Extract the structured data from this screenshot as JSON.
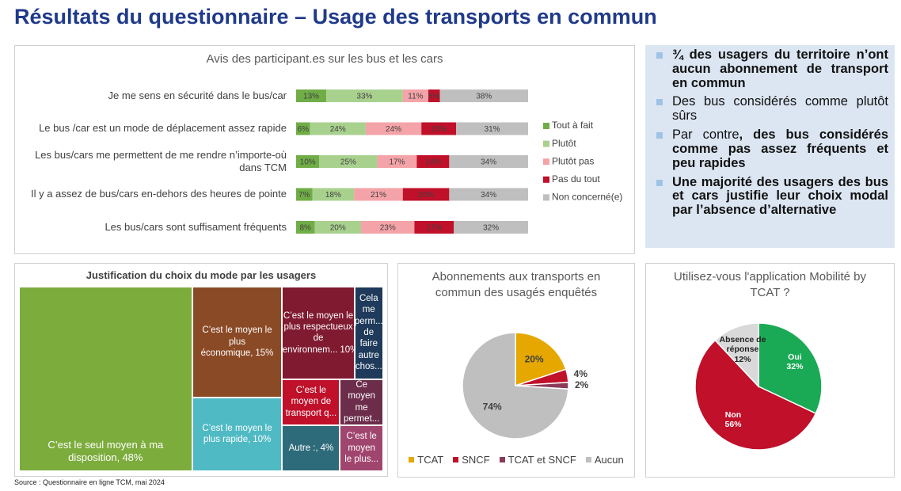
{
  "title": "Résultats du questionnaire – Usage des transports en commun",
  "bullets": [
    [
      {
        "text": "¾ des usagers du territoire n’ont aucun abonnement de transport en commun",
        "bold": true
      }
    ],
    [
      {
        "text": "Des bus considérés comme plutôt sûrs",
        "bold": false
      }
    ],
    [
      {
        "text": "Par contre",
        "bold": false
      },
      {
        "text": ", des bus considérés comme pas assez fréquents et peu rapides",
        "bold": true
      }
    ],
    [
      {
        "text": "Une majorité des usagers des bus et cars justifie leur choix modal par l’absence d’alternative",
        "bold": true
      }
    ]
  ],
  "source": "Source : Questionnaire en ligne TCM, mai 2024",
  "chart_data": [
    {
      "type": "bar",
      "orientation": "horizontal",
      "stacked": true,
      "title": "Avis des participant.es sur les bus et les cars",
      "categories": [
        "Je me sens en sécurité dans le bus/car",
        "Le bus /car est un mode de déplacement assez rapide",
        "Les bus/cars me permettent de me rendre n’importe-où dans TCM",
        "Il y a assez de bus/cars en-dehors des heures de pointe",
        "Les bus/cars sont suffisament fréquents"
      ],
      "series": [
        {
          "name": "Tout à fait",
          "color": "#70ad47",
          "values": [
            13,
            6,
            10,
            7,
            8
          ],
          "value_labels": [
            "13%",
            "6%",
            "10%",
            "7%",
            "8%"
          ]
        },
        {
          "name": "Plutôt",
          "color": "#a9d18e",
          "values": [
            33,
            24,
            25,
            18,
            20
          ],
          "value_labels": [
            "33%",
            "24%",
            "25%",
            "18%",
            "20%"
          ]
        },
        {
          "name": "Plutôt pas",
          "color": "#f4a3a8",
          "values": [
            11,
            24,
            17,
            21,
            23
          ],
          "value_labels": [
            "11%",
            "24%",
            "17%",
            "21%",
            "23%"
          ]
        },
        {
          "name": "Pas du tout",
          "color": "#c0102a",
          "values": [
            5,
            15,
            14,
            20,
            17
          ],
          "value_labels": [
            "5%",
            "15%",
            "14%",
            "20%",
            "17%"
          ]
        },
        {
          "name": "Non concerné(e)",
          "color": "#bfbfbf",
          "values": [
            38,
            31,
            34,
            34,
            32
          ],
          "value_labels": [
            "38%",
            "31%",
            "34%",
            "34%",
            "32%"
          ]
        }
      ],
      "legend": "right"
    },
    {
      "type": "treemap",
      "title": "Justification du choix du mode par les usagers",
      "categories": [
        "C’est le seul moyen à ma disposition,",
        "C’est le moyen le plus économique,",
        "C’est le moyen le plus rapide,",
        "C’est le moyen le plus respectueux de l’environnem...",
        "Cela me perm... de faire autre chos...",
        "C’est le moyen de transport q...",
        "Ce moyen me permet...",
        "Autre :,",
        "C’est le moyen le plus..."
      ],
      "values": [
        48,
        15,
        10,
        10,
        4,
        4,
        3,
        4,
        3
      ],
      "value_labels": [
        "48%",
        "15%",
        "10%",
        "10%",
        null,
        null,
        null,
        "4%",
        null
      ],
      "colors": [
        "#7cac3c",
        "#8b4a26",
        "#4fbac4",
        "#7f1a30",
        "#1f3a5a",
        "#c0102a",
        "#6b2d4a",
        "#2e6b7a",
        "#a0456e"
      ]
    },
    {
      "type": "pie",
      "title": "Abonnements aux transports en commun des usagés enquêtés",
      "categories": [
        "TCAT",
        "SNCF",
        "TCAT et SNCF",
        "Aucun"
      ],
      "values": [
        20,
        4,
        2,
        74
      ],
      "value_labels": [
        "20%",
        "4%",
        "2%",
        "74%"
      ],
      "colors": [
        "#e6a800",
        "#c0102a",
        "#8b3a5a",
        "#bfbfbf"
      ],
      "legend": "bottom"
    },
    {
      "type": "pie",
      "title": "Utilisez-vous l'application Mobilité by TCAT ?",
      "categories": [
        "Oui",
        "Non",
        "Absence de réponse"
      ],
      "values": [
        32,
        56,
        12
      ],
      "value_labels": [
        "32%",
        "56%",
        "12%"
      ],
      "colors": [
        "#1aaa55",
        "#c0102a",
        "#d9d9d9"
      ],
      "legend": "none"
    }
  ]
}
